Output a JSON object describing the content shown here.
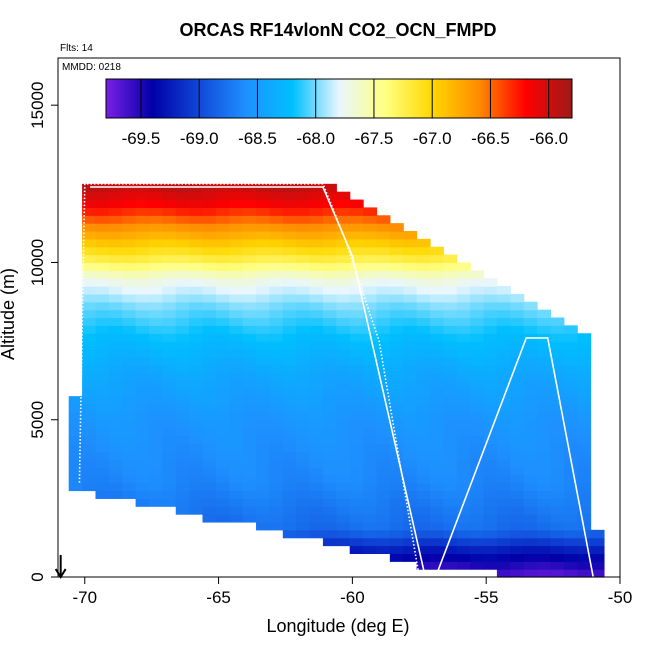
{
  "chart_data": {
    "type": "heatmap",
    "title": "ORCAS RF14vlonN CO2_OCN_FMPD",
    "subtitle_flights": "Flts: 14",
    "subtitle_date": "MMDD: 0218",
    "xlabel": "Longitude (deg E)",
    "ylabel": "Altitude (m)",
    "xlim": [
      -71,
      -50
    ],
    "ylim": [
      0,
      16500
    ],
    "x_ticks": [
      -70,
      -65,
      -60,
      -55,
      -50
    ],
    "x_tick_labels": [
      "-70",
      "-65",
      "-60",
      "-55",
      "-50"
    ],
    "y_ticks": [
      0,
      5000,
      10000,
      15000
    ],
    "y_tick_labels": [
      "0",
      "5000",
      "10000",
      "15000"
    ],
    "colorbar": {
      "range": [
        -69.8,
        -65.8
      ],
      "ticks": [
        -69.5,
        -69.0,
        -68.5,
        -68.0,
        -67.5,
        -67.0,
        -66.5,
        -66.0
      ],
      "tick_labels": [
        "-69.5",
        "-69.0",
        "-68.5",
        "-68.0",
        "-67.5",
        "-67.0",
        "-66.5",
        "-66.0"
      ],
      "colors": [
        "#7a1fe6",
        "#0000a8",
        "#1048d8",
        "#1e90ff",
        "#00bfff",
        "#e8f6ff",
        "#ffff80",
        "#ffd700",
        "#ff8c00",
        "#ff0000",
        "#9e1a1a"
      ]
    },
    "upper_boundary": [
      {
        "lon": -70.0,
        "alt": 12500
      },
      {
        "lon": -61.0,
        "alt": 12400
      },
      {
        "lon": -59.5,
        "alt": 11600
      },
      {
        "lon": -57.5,
        "alt": 10800
      },
      {
        "lon": -55.5,
        "alt": 9800
      },
      {
        "lon": -53.5,
        "alt": 8700
      },
      {
        "lon": -52.0,
        "alt": 8000
      },
      {
        "lon": -51.3,
        "alt": 7600
      },
      {
        "lon": -51.3,
        "alt": 4700
      },
      {
        "lon": -50.9,
        "alt": 1300
      }
    ],
    "lower_boundary": [
      {
        "lon": -70.3,
        "alt": 2800
      },
      {
        "lon": -69.4,
        "alt": 2600
      },
      {
        "lon": -67.5,
        "alt": 2300
      },
      {
        "lon": -66.0,
        "alt": 2000
      },
      {
        "lon": -65.0,
        "alt": 1800
      },
      {
        "lon": -63.0,
        "alt": 1500
      },
      {
        "lon": -61.0,
        "alt": 1100
      },
      {
        "lon": -59.5,
        "alt": 800
      },
      {
        "lon": -58.0,
        "alt": 500
      },
      {
        "lon": -56.5,
        "alt": 200
      },
      {
        "lon": -50.9,
        "alt": 0
      }
    ],
    "left_edge": [
      {
        "lon": -70.6,
        "alt": 2800
      },
      {
        "lon": -70.2,
        "alt": 7700
      },
      {
        "lon": -70.0,
        "alt": 11800
      },
      {
        "lon": -70.0,
        "alt": 12500
      }
    ],
    "profile_value_by_altitude": [
      {
        "alt": 0,
        "value": -69.7
      },
      {
        "alt": 800,
        "value": -69.3
      },
      {
        "alt": 1500,
        "value": -68.8
      },
      {
        "alt": 3000,
        "value": -68.65
      },
      {
        "alt": 5000,
        "value": -68.55
      },
      {
        "alt": 6500,
        "value": -68.4
      },
      {
        "alt": 7700,
        "value": -68.2
      },
      {
        "alt": 8600,
        "value": -68.0
      },
      {
        "alt": 9500,
        "value": -67.7
      },
      {
        "alt": 10000,
        "value": -67.3
      },
      {
        "alt": 10500,
        "value": -67.0
      },
      {
        "alt": 11200,
        "value": -66.6
      },
      {
        "alt": 11800,
        "value": -66.2
      },
      {
        "alt": 12500,
        "value": -65.9
      }
    ],
    "flight_track_dotted": [
      {
        "lon": -70.2,
        "alt": 3000
      },
      {
        "lon": -70.0,
        "alt": 12500
      },
      {
        "lon": -61.1,
        "alt": 12500
      },
      {
        "lon": -60.3,
        "alt": 10800
      },
      {
        "lon": -59.0,
        "alt": 7500
      },
      {
        "lon": -57.5,
        "alt": 0
      }
    ],
    "flight_track_solid": [
      {
        "lon": -69.8,
        "alt": 12400
      },
      {
        "lon": -61.1,
        "alt": 12400
      },
      {
        "lon": -60.0,
        "alt": 10200
      },
      {
        "lon": -57.3,
        "alt": 100
      },
      {
        "lon": -56.8,
        "alt": 200
      },
      {
        "lon": -53.5,
        "alt": 7600
      },
      {
        "lon": -52.7,
        "alt": 7600
      },
      {
        "lon": -51.0,
        "alt": 0
      }
    ],
    "arrow_marker": {
      "lon": -70.9,
      "alt_top": 700,
      "alt_bottom": 0
    }
  }
}
